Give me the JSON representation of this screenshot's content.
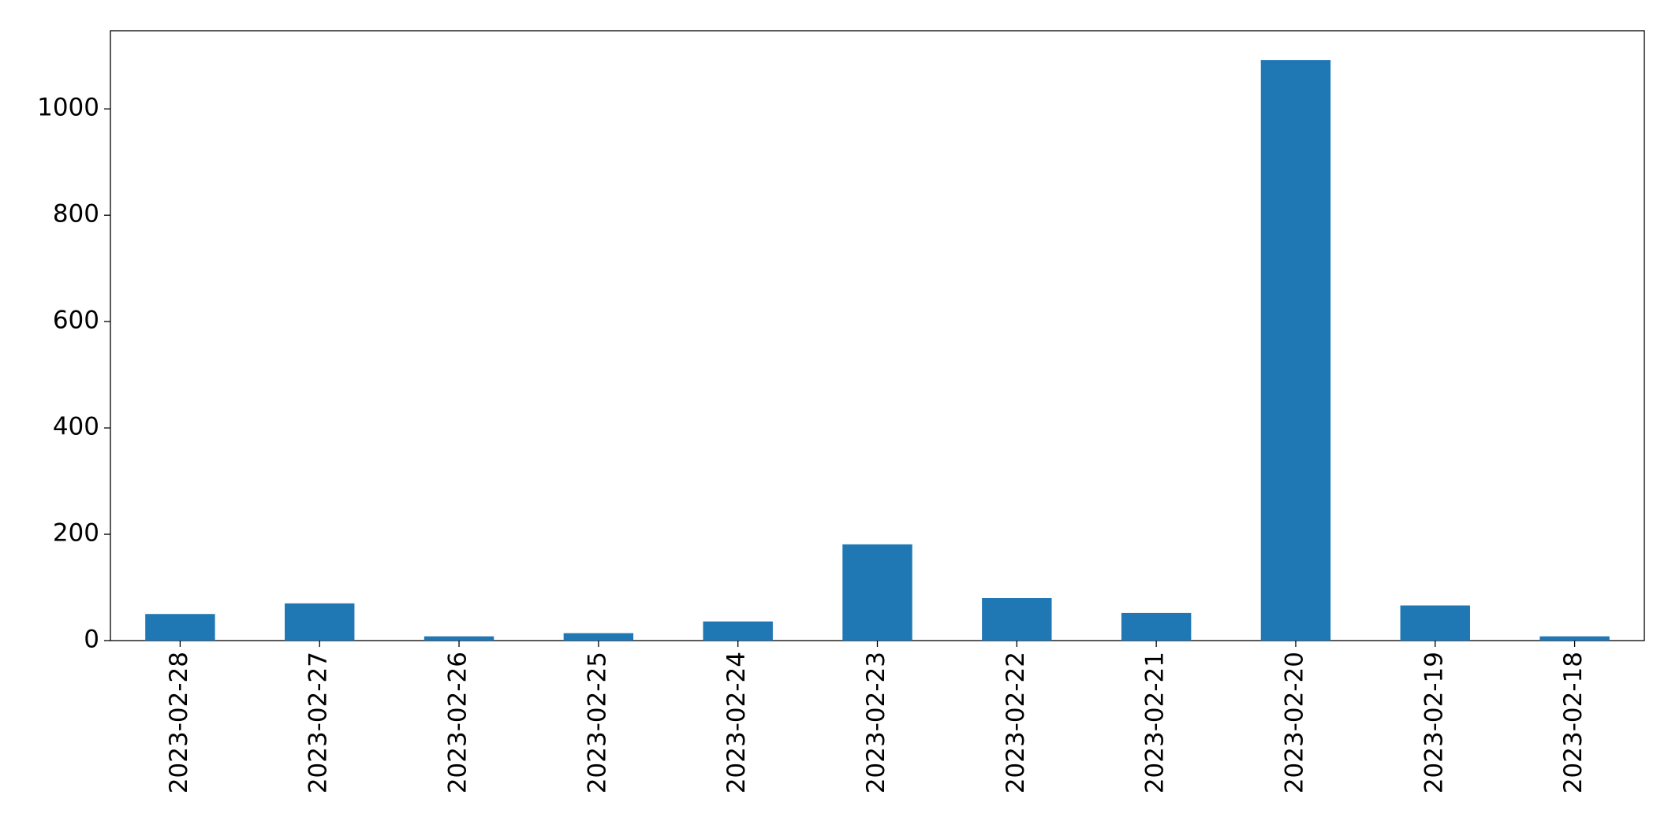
{
  "chart_data": {
    "type": "bar",
    "categories": [
      "2023-02-28",
      "2023-02-27",
      "2023-02-26",
      "2023-02-25",
      "2023-02-24",
      "2023-02-23",
      "2023-02-22",
      "2023-02-21",
      "2023-02-20",
      "2023-02-19",
      "2023-02-18"
    ],
    "values": [
      50,
      70,
      8,
      14,
      36,
      181,
      80,
      52,
      1092,
      66,
      8
    ],
    "color": "#1f77b4",
    "ylim": [
      0,
      1147
    ],
    "yticks": [
      0,
      200,
      400,
      600,
      800,
      1000
    ]
  }
}
